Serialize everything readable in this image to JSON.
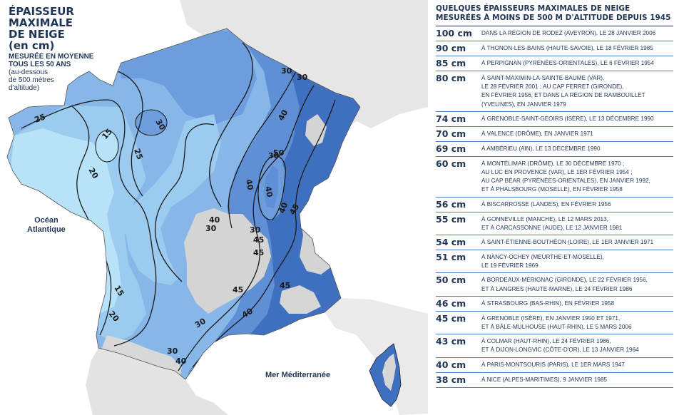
{
  "map": {
    "title_lines": [
      "ÉPAISSEUR",
      "MAXIMALE",
      "DE NEIGE",
      "(en cm)"
    ],
    "subtitle_lines": [
      "MESURÉE EN MOYENNE",
      "TOUS LES 50 ANS"
    ],
    "note_lines": [
      "(au-dessous",
      "de 500 mètres",
      "d'altitude)"
    ],
    "ocean_label_lines": [
      "Océan",
      "Atlantique"
    ],
    "sea_label": "Mer Méditerranée",
    "contour_labels": [
      "15",
      "20",
      "25",
      "30",
      "40",
      "45",
      "50",
      "15",
      "20",
      "25",
      "30",
      "30",
      "30",
      "40",
      "40",
      "40",
      "40",
      "45",
      "45",
      "45",
      "45",
      "40",
      "40",
      "30",
      "30",
      "30",
      "30"
    ],
    "colors": {
      "band_15": "#b7e2f7",
      "band_15_20": "#9ccbf0",
      "band_20_25": "#86b7e8",
      "band_25_30": "#6d9ddc",
      "band_30_40": "#5f8fd4",
      "band_40_plus": "#3f6fbf",
      "mountain": "#d4d4d4",
      "neighbor": "#e4e4e4"
    }
  },
  "records": {
    "title": "QUELQUES ÉPAISSEURS MAXIMALES DE NEIGE MESURÉES À MOINS DE 500 M D'ALTITUDE DEPUIS 1945",
    "rows": [
      {
        "value": "100 cm",
        "lines": [
          "DANS LA RÉGION DE RODEZ (AVEYRON), LE 28 JANVIER 2006"
        ]
      },
      {
        "value": "90 cm",
        "lines": [
          "À THONON-LES-BAINS (HAUTE-SAVOIE), LE 18 FÉVRIER 1985"
        ]
      },
      {
        "value": "85 cm",
        "lines": [
          "À PERPIGNAN (PYRÉNÉES-ORIENTALES), LE 6 FÉVRIER 1954"
        ]
      },
      {
        "value": "80 cm",
        "lines": [
          "À SAINT-MAXIMIN-LA-SAINTE-BAUME (VAR),",
          "LE 28 FÉVRIER 2001 ; AU CAP FERRET (GIRONDE),",
          "EN FÉVRIER 1956, ET DANS LA RÉGION DE RAMBOUILLET",
          "(YVELINES), EN JANVIER 1979"
        ]
      },
      {
        "value": "74 cm",
        "lines": [
          "À GRENOBLE-SAINT-GEOIRS (ISÈRE), LE 13 DÉCEMBRE 1990"
        ]
      },
      {
        "value": "70 cm",
        "lines": [
          "À VALENCE (DRÔME), EN JANVIER 1971"
        ]
      },
      {
        "value": "69 cm",
        "lines": [
          "À AMBÉRIEU (AIN), LE 13 DÉCEMBRE 1990"
        ]
      },
      {
        "value": "60 cm",
        "lines": [
          "À MONTÉLIMAR (DRÔME), LE 30 DÉCEMBRE 1970 ;",
          "AU LUC EN PROVENCE (VAR), LE 1ER FÉVRIER 1954 ;",
          "AU CAP BÉAR (PYRÉNÉES-ORIENTALES), EN JANVIER 1992,",
          "ET À PHALSBOURG (MOSELLE), EN FÉVRIER 1958"
        ]
      },
      {
        "value": "56 cm",
        "lines": [
          "À BISCARROSSE (LANDES), EN FÉVRIER 1956"
        ]
      },
      {
        "value": "55 cm",
        "lines": [
          "À GONNEVILLE (MANCHE), LE 12 MARS 2013,",
          "ET À CARCASSONNE (AUDE), LE 12 JANVIER 1981"
        ]
      },
      {
        "value": "54 cm",
        "lines": [
          "À SAINT-ÉTIENNE-BOUTHÉON (LOIRE), LE 1ER JANVIER 1971"
        ]
      },
      {
        "value": "51 cm",
        "lines": [
          "À NANCY-OCHEY (MEURTHE-ET-MOSELLE),",
          "LE 19 FÉVRIER 1969"
        ]
      },
      {
        "value": "50 cm",
        "lines": [
          "À BORDEAUX-MÉRIGNAC (GIRONDE), LE 22 FÉVRIER 1956,",
          "ET À LANGRES (HAUTE-MARNE), LE 24 FÉVRIER 1986"
        ]
      },
      {
        "value": "46 cm",
        "lines": [
          "À STRASBOURG (BAS-RHIN), EN FÉVRIER 1958"
        ]
      },
      {
        "value": "45 cm",
        "lines": [
          "À GRENOBLE (ISÈRE), EN JANVIER 1950 ET 1971,",
          "ET À BÂLE-MULHOUSE (HAUT-RHIN), LE 5 MARS 2006"
        ]
      },
      {
        "value": "43 cm",
        "lines": [
          "À COLMAR (HAUT-RHIN), LE 24 FÉVRIER 1986,",
          "ET À DIJON-LONGVIC (CÔTE-D'OR), LE 13 JANVIER 1964"
        ]
      },
      {
        "value": "40 cm",
        "lines": [
          "À PARIS-MONTSOURIS (PARIS), LE 1ER MARS 1947"
        ]
      },
      {
        "value": "38 cm",
        "lines": [
          "À NICE (ALPES-MARITIMES), 9 JANVIER 1985"
        ]
      }
    ]
  }
}
